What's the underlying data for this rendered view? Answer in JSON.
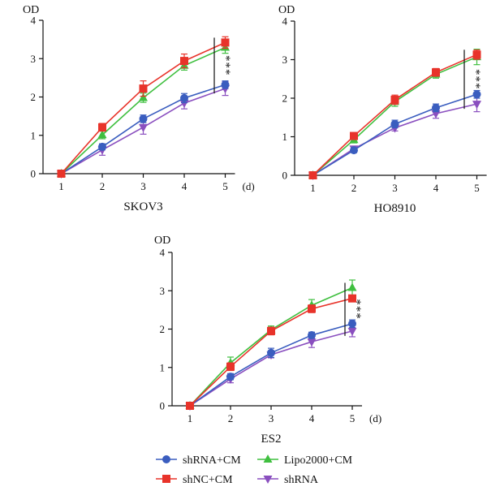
{
  "chart_data": [
    {
      "type": "line",
      "title": "SKOV3",
      "ylabel": "OD",
      "xunit": "(d)",
      "x": [
        1,
        2,
        3,
        4,
        5
      ],
      "ylim": [
        0,
        4
      ],
      "yticks": [
        0,
        1,
        2,
        3,
        4
      ],
      "significance": "***",
      "series": [
        {
          "name": "shRNA+CM",
          "values": [
            0.0,
            0.7,
            1.43,
            1.97,
            2.32
          ],
          "errors": [
            0,
            0.08,
            0.1,
            0.12,
            0.1
          ]
        },
        {
          "name": "shNC+CM",
          "values": [
            0.0,
            1.21,
            2.22,
            2.94,
            3.42
          ],
          "errors": [
            0,
            0.1,
            0.2,
            0.18,
            0.15
          ]
        },
        {
          "name": "Lipo2000+CM",
          "values": [
            0.0,
            1.01,
            1.98,
            2.82,
            3.29
          ],
          "errors": [
            0,
            0.1,
            0.12,
            0.12,
            0.15
          ]
        },
        {
          "name": "shRNA",
          "values": [
            0.0,
            0.62,
            1.21,
            1.84,
            2.22
          ],
          "errors": [
            0,
            0.14,
            0.18,
            0.15,
            0.18
          ]
        }
      ]
    },
    {
      "type": "line",
      "title": "HO8910",
      "ylabel": "OD",
      "xunit": "(d)",
      "x": [
        1,
        2,
        3,
        4,
        5
      ],
      "ylim": [
        0,
        4
      ],
      "yticks": [
        0,
        1,
        2,
        3,
        4
      ],
      "significance": "***",
      "series": [
        {
          "name": "shRNA+CM",
          "values": [
            0.0,
            0.65,
            1.33,
            1.75,
            2.1
          ],
          "errors": [
            0,
            0.06,
            0.1,
            0.1,
            0.1
          ]
        },
        {
          "name": "shNC+CM",
          "values": [
            0.0,
            1.02,
            1.96,
            2.67,
            3.13
          ],
          "errors": [
            0,
            0.08,
            0.12,
            0.1,
            0.12
          ]
        },
        {
          "name": "Lipo2000+CM",
          "values": [
            0.0,
            0.92,
            1.91,
            2.62,
            3.07
          ],
          "errors": [
            0,
            0.08,
            0.12,
            0.1,
            0.2
          ]
        },
        {
          "name": "shRNA",
          "values": [
            0.0,
            0.69,
            1.23,
            1.6,
            1.85
          ],
          "errors": [
            0,
            0.06,
            0.08,
            0.12,
            0.2
          ]
        }
      ]
    },
    {
      "type": "line",
      "title": "ES2",
      "ylabel": "OD",
      "xunit": "(d)",
      "x": [
        1,
        2,
        3,
        4,
        5
      ],
      "ylim": [
        0,
        4
      ],
      "yticks": [
        0,
        1,
        2,
        3,
        4
      ],
      "significance": "***",
      "series": [
        {
          "name": "shRNA+CM",
          "values": [
            0.0,
            0.76,
            1.38,
            1.84,
            2.14
          ],
          "errors": [
            0,
            0.08,
            0.12,
            0.08,
            0.1
          ]
        },
        {
          "name": "shNC+CM",
          "values": [
            0.0,
            1.02,
            1.95,
            2.53,
            2.8
          ],
          "errors": [
            0,
            0.1,
            0.1,
            0.1,
            0.08
          ]
        },
        {
          "name": "Lipo2000+CM",
          "values": [
            0.0,
            1.12,
            1.98,
            2.62,
            3.08
          ],
          "errors": [
            0,
            0.15,
            0.1,
            0.15,
            0.2
          ]
        },
        {
          "name": "shRNA",
          "values": [
            0.0,
            0.7,
            1.33,
            1.67,
            1.95
          ],
          "errors": [
            0,
            0.1,
            0.08,
            0.15,
            0.15
          ]
        }
      ]
    }
  ],
  "legend": [
    {
      "label": "shRNA+CM",
      "color": "#3a5dbf",
      "marker": "circle"
    },
    {
      "label": "Lipo2000+CM",
      "color": "#3fbf3f",
      "marker": "triangle-up"
    },
    {
      "label": "shNC+CM",
      "color": "#e8332a",
      "marker": "square"
    },
    {
      "label": "shRNA",
      "color": "#8a4fbf",
      "marker": "triangle-down"
    }
  ]
}
